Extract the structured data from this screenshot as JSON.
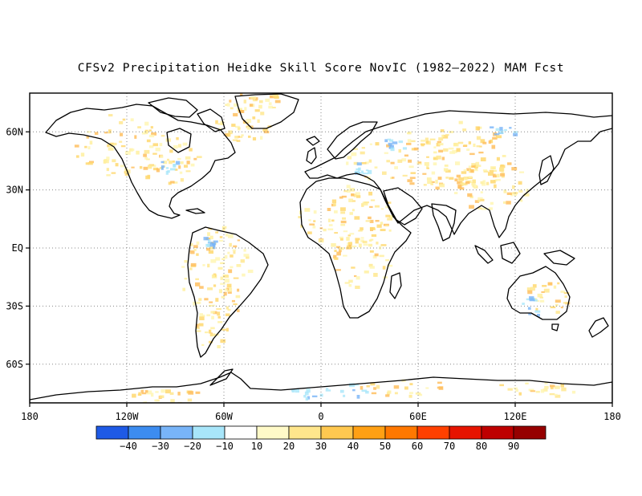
{
  "title": "CFSv2 Precipitation Heidke Skill Score NovIC (1982–2022) MAM Fcst",
  "map": {
    "projection": "equirectangular",
    "lon_range": [
      -180,
      180
    ],
    "lat_range": [
      -80,
      80
    ],
    "grid": "dotted",
    "x_ticks": [
      {
        "lon": -180,
        "label": "180"
      },
      {
        "lon": -120,
        "label": "120W"
      },
      {
        "lon": -60,
        "label": "60W"
      },
      {
        "lon": 0,
        "label": "0"
      },
      {
        "lon": 60,
        "label": "60E"
      },
      {
        "lon": 120,
        "label": "120E"
      },
      {
        "lon": 180,
        "label": "180"
      }
    ],
    "y_ticks": [
      {
        "lat": 60,
        "label": "60N"
      },
      {
        "lat": 30,
        "label": "30N"
      },
      {
        "lat": 0,
        "label": "EQ"
      },
      {
        "lat": -30,
        "label": "30S"
      },
      {
        "lat": -60,
        "label": "60S"
      }
    ],
    "field": "heidke skill score (%), mostly weak positive over land, scattered negative patches"
  },
  "colorbar": {
    "colors": [
      "#1e5ae6",
      "#3c8cf0",
      "#78b4f8",
      "#a8e6fa",
      "#ffffff",
      "#fffac8",
      "#ffe68c",
      "#ffc850",
      "#ffa014",
      "#ff7800",
      "#ff4000",
      "#e61400",
      "#be0000",
      "#960000"
    ],
    "labels": [
      "−40",
      "−30",
      "−20",
      "−10",
      "10",
      "20",
      "30",
      "40",
      "50",
      "60",
      "70",
      "80",
      "90"
    ]
  }
}
